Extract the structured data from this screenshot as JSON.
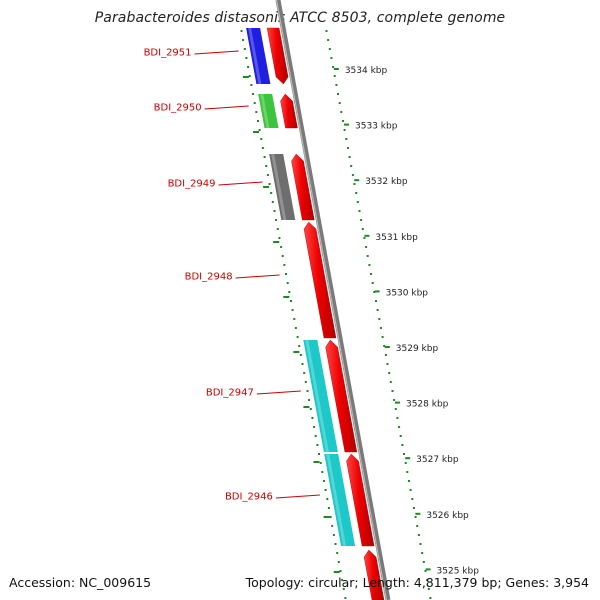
{
  "title": "Parabacteroides distasonis ATCC 8503, complete genome",
  "footer": {
    "accession": "Accession: NC_009615",
    "summary": "Topology: circular; Length: 4,811,379 bp; Genes: 3,954"
  },
  "genes": [
    {
      "label": "BDI_2951",
      "top_y": 28,
      "bottom_y": 84,
      "cog_color": "#1f1fe0",
      "dir_up": false
    },
    {
      "label": "BDI_2950",
      "top_y": 94,
      "bottom_y": 128,
      "cog_color": "#3cc43c",
      "dir_up": true
    },
    {
      "label": "BDI_2949",
      "top_y": 154,
      "bottom_y": 220,
      "cog_color": "#6e6e6e",
      "dir_up": true
    },
    {
      "label": "BDI_2948",
      "top_y": 222,
      "bottom_y": 338,
      "cog_color": null,
      "dir_up": true
    },
    {
      "label": "BDI_2947",
      "top_y": 340,
      "bottom_y": 452,
      "cog_color": "#1cc8c8",
      "dir_up": true
    },
    {
      "label": "BDI_2946",
      "top_y": 454,
      "bottom_y": 546,
      "cog_color": "#1cc8c8",
      "dir_up": true
    },
    {
      "label": "",
      "top_y": 550,
      "bottom_y": 600,
      "cog_color": null,
      "dir_up": true
    }
  ],
  "kbp_ticks": [
    "3534 kbp",
    "3533 kbp",
    "3532 kbp",
    "3531 kbp",
    "3530 kbp",
    "3529 kbp",
    "3528 kbp",
    "3527 kbp",
    "3526 kbp",
    "3525 kbp"
  ],
  "colors": {
    "gene_strand": "#ee1111",
    "gene_label": "#cc0000",
    "backbone": "#7a7a7a",
    "ruler_dots": "#1e8a1e"
  }
}
